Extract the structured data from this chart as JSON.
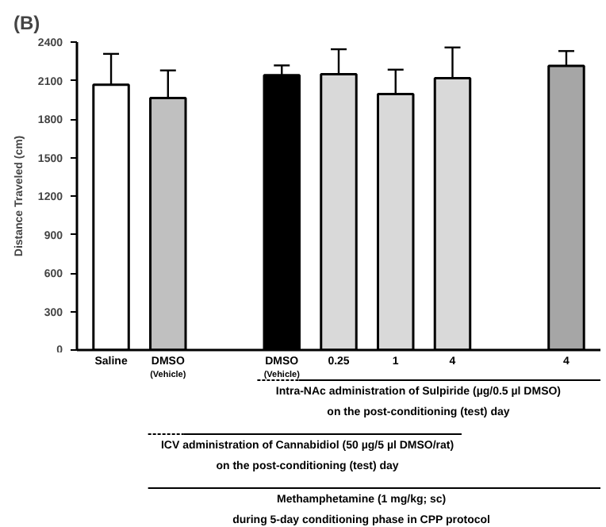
{
  "chart_data": {
    "type": "bar",
    "title": "(B)",
    "ylabel": "Distance Traveled (cm)",
    "categories": [
      "Saline",
      "DMSO\n(Vehicle)",
      null,
      "DMSO\n(Vehicle)",
      "0.25",
      "1",
      "4",
      null,
      "4"
    ],
    "values": [
      2068,
      1964,
      null,
      2141,
      2149,
      1995,
      2118,
      null,
      2215
    ],
    "errors": [
      240,
      215,
      null,
      77,
      195,
      190,
      240,
      null,
      115
    ],
    "colors": [
      "#ffffff",
      "#c0c0c0",
      "#ffffff",
      "#000000",
      "#d9d9d9",
      "#d9d9d9",
      "#d9d9d9",
      "#ffffff",
      "#a6a6a6"
    ],
    "ylim": [
      0,
      2400
    ],
    "yticks": [
      0,
      300,
      600,
      900,
      1200,
      1500,
      1800,
      2100,
      2400
    ],
    "grid": false,
    "annotations": [
      "Intra-NAc administration of Sulpiride (µg/0.5 µl DMSO)\non the post-conditioning (test) day",
      "ICV administration of Cannabidiol (50 µg/5 µl DMSO/rat)\non the post-conditioning (test) day",
      "Methamphetamine (1 mg/kg; sc)\nduring 5-day conditioning phase in CPP protocol"
    ]
  }
}
